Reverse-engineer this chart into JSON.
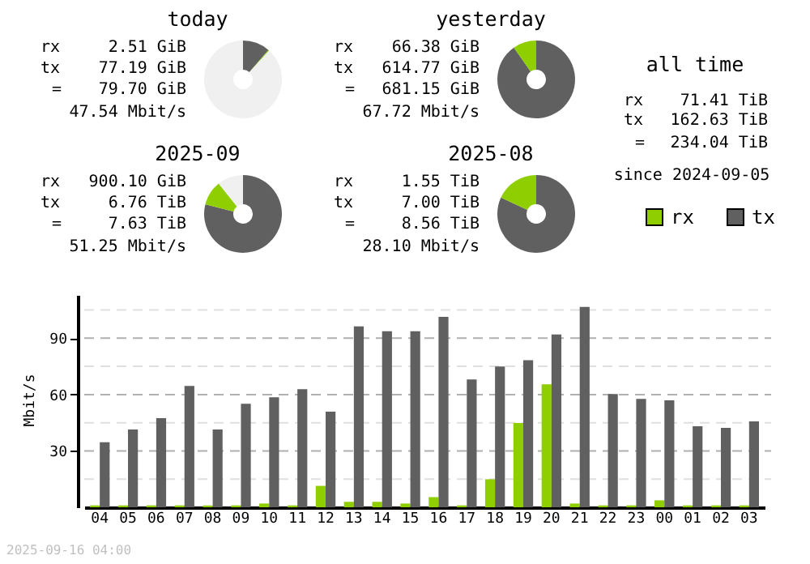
{
  "chart_data": [
    {
      "type": "donut",
      "title": "today",
      "categories": [
        null,
        null,
        null
      ],
      "values": [
        11.33,
        0.37,
        88.3
      ],
      "colors": [
        "#606060",
        "#8fce00",
        "#f0f0f0"
      ],
      "annotations": [
        "rx",
        "2.51 GiB",
        "tx",
        "77.19 GiB",
        "=",
        "79.70 GiB",
        "47.54 Mbit/s"
      ]
    },
    {
      "type": "donut",
      "title": "yesterday",
      "categories": [
        null,
        null
      ],
      "values": [
        90.25,
        9.75
      ],
      "colors": [
        "#606060",
        "#8fce00"
      ],
      "annotations": [
        "rx",
        "66.38 GiB",
        "tx",
        "614.77 GiB",
        "=",
        "681.15 GiB",
        "67.72 Mbit/s"
      ]
    },
    {
      "type": "donut",
      "title": "2025-09",
      "categories": [
        null,
        null,
        null
      ],
      "values": [
        78.97,
        10.27,
        10.76
      ],
      "colors": [
        "#606060",
        "#8fce00",
        "#f0f0f0"
      ],
      "annotations": [
        "rx",
        "900.10 GiB",
        "tx",
        "6.76 TiB",
        "=",
        "7.63 TiB",
        "51.25 Mbit/s"
      ]
    },
    {
      "type": "donut",
      "title": "2025-08",
      "categories": [
        null,
        null
      ],
      "values": [
        81.89,
        18.11
      ],
      "colors": [
        "#606060",
        "#8fce00"
      ],
      "annotations": [
        "rx",
        "1.55 TiB",
        "tx",
        "7.00 TiB",
        "=",
        "8.56 TiB",
        "28.10 Mbit/s"
      ]
    },
    {
      "type": "other",
      "title": "all time",
      "annotations": [
        "rx",
        "71.41 TiB",
        "tx",
        "162.63 TiB",
        "=",
        "234.04 TiB",
        "since 2024-09-05"
      ]
    },
    {
      "type": "bar",
      "ylabel": "Mbit/s",
      "categories": [
        "04",
        "05",
        "06",
        "07",
        "08",
        "09",
        "10",
        "11",
        "12",
        "13",
        "14",
        "15",
        "16",
        "17",
        "18",
        "19",
        "20",
        "21",
        "22",
        "23",
        "00",
        "01",
        "02",
        "03"
      ],
      "series": [
        {
          "name": "rx",
          "color": "#8fce00",
          "values": [
            1,
            1,
            1,
            1,
            1,
            1,
            2,
            1,
            11.4,
            2.9,
            2.9,
            2,
            5.4,
            1,
            14.9,
            44.9,
            65.4,
            2,
            1,
            1,
            3.7,
            1,
            1,
            1
          ]
        },
        {
          "name": "tx",
          "color": "#606060",
          "values": [
            34.6,
            41.4,
            47.4,
            64.6,
            41.4,
            55.1,
            58.6,
            62.9,
            50.9,
            96.3,
            93.7,
            93.7,
            101.4,
            68,
            74.9,
            78.3,
            92,
            106.6,
            60.3,
            57.7,
            56.9,
            43.1,
            42.3,
            45.7
          ]
        }
      ],
      "ylim": [
        0,
        113
      ],
      "yticks": [
        {
          "value": 15,
          "label": null
        },
        30,
        {
          "value": 45,
          "label": null
        },
        60,
        {
          "value": 75,
          "label": null
        },
        90,
        {
          "value": 105,
          "label": null
        }
      ],
      "grid": "y",
      "legend": "top right",
      "annotations": [
        "2025-09-16 04:00"
      ]
    }
  ]
}
